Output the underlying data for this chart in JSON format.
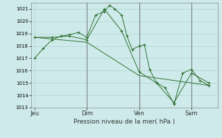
{
  "background_color": "#ceeaea",
  "grid_color": "#aacece",
  "line_color": "#2d6e2d",
  "marker_color": "#2d6e2d",
  "xlabel": "Pression niveau de la mer( hPa )",
  "ylim": [
    1013,
    1021.5
  ],
  "yticks": [
    1013,
    1014,
    1015,
    1016,
    1017,
    1018,
    1019,
    1020,
    1021
  ],
  "xtick_labels": [
    "Jeu",
    "Dim",
    "Ven",
    "Sam"
  ],
  "xtick_positions": [
    0,
    30,
    60,
    90
  ],
  "xlim": [
    -2,
    105
  ],
  "series1_x": [
    0,
    5,
    10,
    15,
    20,
    25,
    30,
    35,
    40,
    43,
    46,
    50,
    53,
    56,
    60,
    63,
    66,
    70,
    75,
    80,
    85,
    90,
    95,
    100
  ],
  "series1_y": [
    1017.0,
    1017.8,
    1018.5,
    1018.8,
    1018.9,
    1019.1,
    1018.7,
    1020.5,
    1020.8,
    1021.3,
    1021.0,
    1020.5,
    1018.8,
    1017.7,
    1018.0,
    1018.1,
    1016.1,
    1015.0,
    1014.6,
    1013.3,
    1015.8,
    1016.1,
    1015.2,
    1014.8
  ],
  "series2_x": [
    0,
    10,
    20,
    30,
    40,
    50,
    60,
    70,
    80,
    90,
    100
  ],
  "series2_y": [
    1018.7,
    1018.7,
    1018.8,
    1018.5,
    1021.0,
    1019.2,
    1015.9,
    1015.0,
    1013.4,
    1015.8,
    1015.0
  ],
  "series3_x": [
    0,
    30,
    60,
    90,
    100
  ],
  "series3_y": [
    1018.7,
    1018.3,
    1015.6,
    1015.0,
    1014.8
  ],
  "vlines_x": [
    30,
    60,
    90
  ],
  "figsize": [
    3.2,
    2.0
  ],
  "dpi": 100
}
